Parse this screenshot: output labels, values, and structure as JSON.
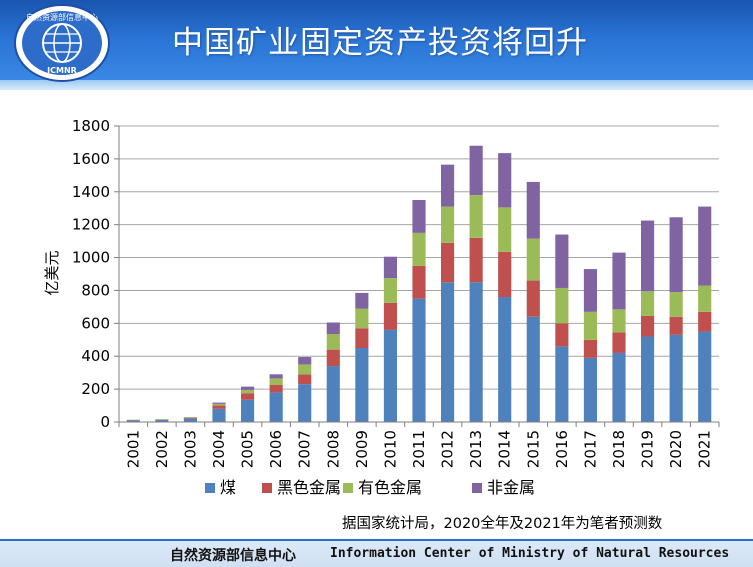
{
  "header": {
    "title": "中国矿业固定资产投资将回升",
    "logo": {
      "name_cn": "自然资源部信息中心",
      "abbr": "ICMNR"
    }
  },
  "footer": {
    "name_cn": "自然资源部信息中心",
    "name_en": "Information Center of Ministry of Natural Resources"
  },
  "source_note": "据国家统计局，2020全年及2021年为笔者预测数",
  "colors": {
    "coal": "#4f81bd",
    "ferrous": "#c0504d",
    "nonferrous": "#9bbb59",
    "nonmetal": "#8064a2",
    "header": "#2a74d6"
  },
  "chart_data": {
    "type": "bar",
    "stacked": true,
    "title": "中国矿业固定资产投资将回升",
    "xlabel": "",
    "ylabel": "亿美元",
    "ylim": [
      0,
      1800
    ],
    "yticks": [
      0,
      200,
      400,
      600,
      800,
      1000,
      1200,
      1400,
      1600,
      1800
    ],
    "grid": true,
    "legend_position": "bottom",
    "categories": [
      "2001",
      "2002",
      "2003",
      "2004",
      "2005",
      "2006",
      "2007",
      "2008",
      "2009",
      "2010",
      "2011",
      "2012",
      "2013",
      "2014",
      "2015",
      "2016",
      "2017",
      "2018",
      "2019",
      "2020",
      "2021"
    ],
    "series": [
      {
        "name": "煤",
        "key": "coal",
        "values": [
          10,
          12,
          20,
          80,
          135,
          180,
          230,
          340,
          450,
          560,
          750,
          850,
          850,
          760,
          640,
          460,
          390,
          420,
          520,
          530,
          550
        ]
      },
      {
        "name": "黑色金属",
        "key": "ferrous",
        "values": [
          2,
          2,
          5,
          20,
          40,
          45,
          60,
          100,
          120,
          165,
          200,
          240,
          270,
          275,
          220,
          140,
          110,
          125,
          125,
          110,
          120
        ]
      },
      {
        "name": "有色金属",
        "key": "nonferrous",
        "values": [
          1,
          2,
          3,
          10,
          20,
          40,
          60,
          95,
          120,
          150,
          200,
          220,
          260,
          270,
          255,
          215,
          170,
          140,
          150,
          150,
          160
        ]
      },
      {
        "name": "非金属",
        "key": "nonmetal",
        "values": [
          1,
          1,
          2,
          8,
          20,
          25,
          45,
          70,
          95,
          130,
          200,
          255,
          300,
          330,
          345,
          325,
          260,
          345,
          430,
          455,
          480
        ]
      }
    ]
  }
}
